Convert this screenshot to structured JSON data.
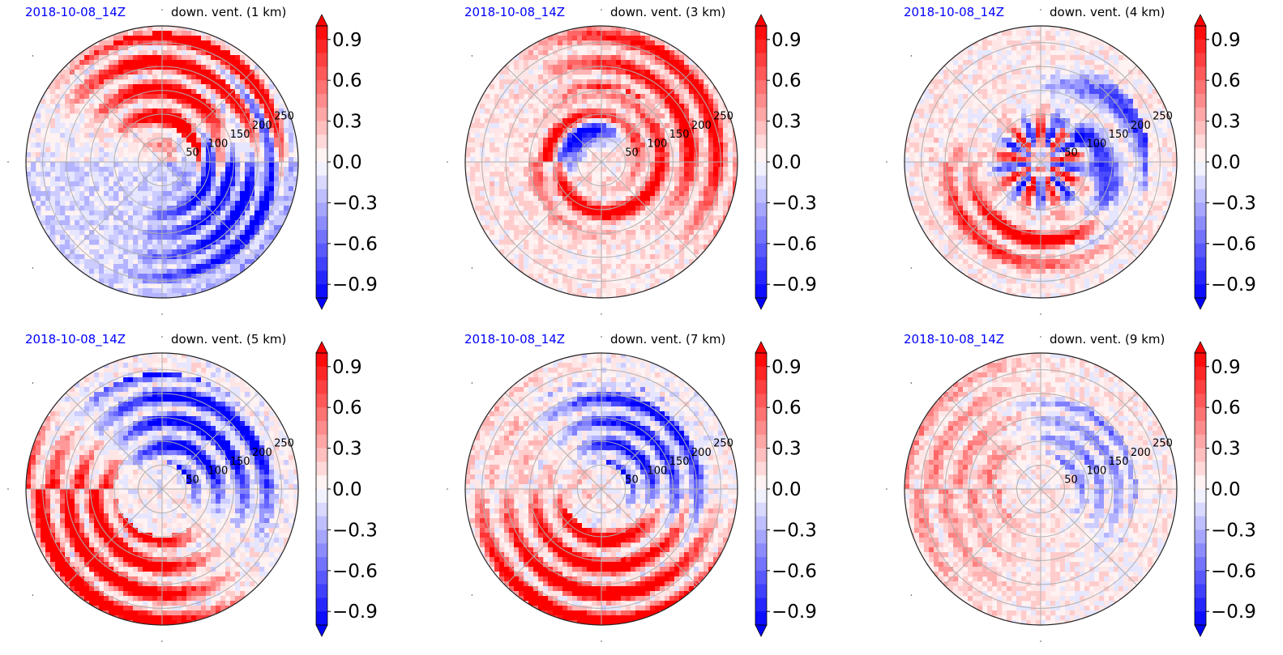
{
  "figure": {
    "colors": {
      "positive": "#ff0000",
      "negative": "#0000ff",
      "neutral": "#ffffff",
      "title_left": "#0000ff",
      "title_right": "#000000",
      "grid": "#b0b0b0"
    }
  },
  "colorbar": {
    "ticks": [
      "0.9",
      "0.6",
      "0.3",
      "0.0",
      "−0.3",
      "−0.6",
      "−0.9"
    ],
    "tick_values": [
      0.9,
      0.6,
      0.3,
      0.0,
      -0.3,
      -0.6,
      -0.9
    ],
    "range": [
      -1.0,
      1.0
    ],
    "extend": "both"
  },
  "chart_data": [
    {
      "type": "heatmap",
      "projection": "polar",
      "title_left": "2018-10-08_14Z",
      "title_right": "down. vent. (1 km)",
      "radial_ticks": [
        "50",
        "100",
        "150",
        "200",
        "250"
      ],
      "radial_tick_values": [
        50,
        100,
        150,
        200,
        250
      ],
      "r_max": 285,
      "vmin": -1.0,
      "vmax": 1.0,
      "colormap": "bwr",
      "dominant": "positive-north",
      "grid": true
    },
    {
      "type": "heatmap",
      "projection": "polar",
      "title_left": "2018-10-08_14Z",
      "title_right": "down. vent. (3 km)",
      "radial_ticks": [
        "50",
        "100",
        "150",
        "200",
        "250"
      ],
      "radial_tick_values": [
        50,
        100,
        150,
        200,
        250
      ],
      "r_max": 285,
      "vmin": -1.0,
      "vmax": 1.0,
      "colormap": "bwr",
      "dominant": "positive-ring",
      "grid": true
    },
    {
      "type": "heatmap",
      "projection": "polar",
      "title_left": "2018-10-08_14Z",
      "title_right": "down. vent. (4 km)",
      "radial_ticks": [
        "50",
        "100",
        "150",
        "200",
        "250"
      ],
      "radial_tick_values": [
        50,
        100,
        150,
        200,
        250
      ],
      "r_max": 285,
      "vmin": -1.0,
      "vmax": 1.0,
      "colormap": "bwr",
      "dominant": "positive-south",
      "grid": true
    },
    {
      "type": "heatmap",
      "projection": "polar",
      "title_left": "2018-10-08_14Z",
      "title_right": "down. vent. (5 km)",
      "radial_ticks": [
        "50",
        "100",
        "150",
        "200",
        "250"
      ],
      "radial_tick_values": [
        50,
        100,
        150,
        200,
        250
      ],
      "r_max": 285,
      "vmin": -1.0,
      "vmax": 1.0,
      "colormap": "bwr",
      "dominant": "positive-southwest",
      "grid": true
    },
    {
      "type": "heatmap",
      "projection": "polar",
      "title_left": "2018-10-08_14Z",
      "title_right": "down. vent. (7 km)",
      "radial_ticks": [
        "50",
        "100",
        "150",
        "200",
        "250"
      ],
      "radial_tick_values": [
        50,
        100,
        150,
        200,
        250
      ],
      "r_max": 285,
      "vmin": -1.0,
      "vmax": 1.0,
      "colormap": "bwr",
      "dominant": "positive-south",
      "grid": true
    },
    {
      "type": "heatmap",
      "projection": "polar",
      "title_left": "2018-10-08_14Z",
      "title_right": "down. vent. (9 km)",
      "radial_ticks": [
        "50",
        "100",
        "150",
        "200",
        "250"
      ],
      "radial_tick_values": [
        50,
        100,
        150,
        200,
        250
      ],
      "r_max": 285,
      "vmin": -1.0,
      "vmax": 1.0,
      "colormap": "bwr",
      "dominant": "weak-positive-west",
      "grid": true
    }
  ]
}
